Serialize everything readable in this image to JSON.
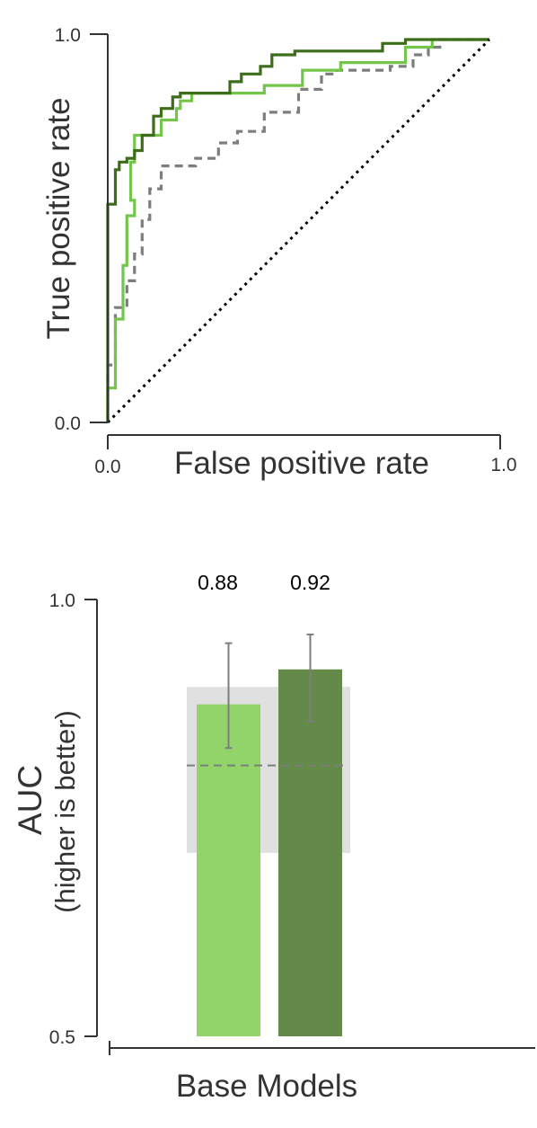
{
  "chart_data": [
    {
      "type": "line",
      "xlabel": "False positive rate",
      "ylabel": "True positive rate",
      "xlim": [
        0,
        1
      ],
      "ylim": [
        0,
        1
      ],
      "x_ticks": [
        "0.0",
        "1.0"
      ],
      "y_ticks": [
        "0.0",
        "1.0"
      ],
      "grid": false,
      "series": [
        {
          "color": "#7d7d7d",
          "style": "dashed",
          "points": [
            [
              0,
              0
            ],
            [
              0,
              0.15
            ],
            [
              0.02,
              0.15
            ],
            [
              0.02,
              0.3
            ],
            [
              0.05,
              0.3
            ],
            [
              0.05,
              0.37
            ],
            [
              0.07,
              0.37
            ],
            [
              0.07,
              0.44
            ],
            [
              0.09,
              0.44
            ],
            [
              0.09,
              0.53
            ],
            [
              0.11,
              0.53
            ],
            [
              0.11,
              0.61
            ],
            [
              0.14,
              0.61
            ],
            [
              0.14,
              0.67
            ],
            [
              0.23,
              0.67
            ],
            [
              0.23,
              0.69
            ],
            [
              0.29,
              0.69
            ],
            [
              0.29,
              0.73
            ],
            [
              0.34,
              0.73
            ],
            [
              0.34,
              0.76
            ],
            [
              0.41,
              0.76
            ],
            [
              0.41,
              0.81
            ],
            [
              0.5,
              0.81
            ],
            [
              0.5,
              0.87
            ],
            [
              0.56,
              0.87
            ],
            [
              0.56,
              0.91
            ],
            [
              0.6,
              0.91
            ],
            [
              0.6,
              0.92
            ],
            [
              0.74,
              0.92
            ],
            [
              0.74,
              0.93
            ],
            [
              0.8,
              0.93
            ],
            [
              0.8,
              0.96
            ],
            [
              0.84,
              0.96
            ],
            [
              0.84,
              0.98
            ],
            [
              0.87,
              0.98
            ],
            [
              0.87,
              1.0
            ],
            [
              1.0,
              1.0
            ]
          ]
        },
        {
          "color": "#74c64a",
          "style": "solid",
          "points": [
            [
              0,
              0
            ],
            [
              0,
              0.09
            ],
            [
              0.02,
              0.09
            ],
            [
              0.02,
              0.27
            ],
            [
              0.04,
              0.27
            ],
            [
              0.04,
              0.41
            ],
            [
              0.05,
              0.41
            ],
            [
              0.05,
              0.54
            ],
            [
              0.07,
              0.54
            ],
            [
              0.07,
              0.58
            ],
            [
              0.06,
              0.58
            ],
            [
              0.06,
              0.68
            ],
            [
              0.07,
              0.68
            ],
            [
              0.07,
              0.75
            ],
            [
              0.14,
              0.75
            ],
            [
              0.14,
              0.79
            ],
            [
              0.18,
              0.79
            ],
            [
              0.18,
              0.82
            ],
            [
              0.19,
              0.82
            ],
            [
              0.19,
              0.84
            ],
            [
              0.22,
              0.84
            ],
            [
              0.22,
              0.86
            ],
            [
              0.41,
              0.86
            ],
            [
              0.41,
              0.88
            ],
            [
              0.51,
              0.88
            ],
            [
              0.51,
              0.92
            ],
            [
              0.61,
              0.92
            ],
            [
              0.61,
              0.94
            ],
            [
              0.78,
              0.94
            ],
            [
              0.78,
              0.98
            ],
            [
              0.85,
              0.98
            ],
            [
              0.85,
              1.0
            ],
            [
              1.0,
              1.0
            ]
          ]
        },
        {
          "color": "#3c6e1a",
          "style": "solid",
          "points": [
            [
              0,
              0
            ],
            [
              0,
              0.57
            ],
            [
              0.02,
              0.57
            ],
            [
              0.02,
              0.66
            ],
            [
              0.03,
              0.66
            ],
            [
              0.03,
              0.68
            ],
            [
              0.05,
              0.68
            ],
            [
              0.05,
              0.69
            ],
            [
              0.07,
              0.69
            ],
            [
              0.07,
              0.71
            ],
            [
              0.09,
              0.71
            ],
            [
              0.09,
              0.75
            ],
            [
              0.12,
              0.75
            ],
            [
              0.12,
              0.8
            ],
            [
              0.14,
              0.8
            ],
            [
              0.14,
              0.82
            ],
            [
              0.17,
              0.82
            ],
            [
              0.17,
              0.85
            ],
            [
              0.19,
              0.85
            ],
            [
              0.19,
              0.86
            ],
            [
              0.32,
              0.86
            ],
            [
              0.32,
              0.89
            ],
            [
              0.35,
              0.89
            ],
            [
              0.35,
              0.91
            ],
            [
              0.4,
              0.91
            ],
            [
              0.4,
              0.93
            ],
            [
              0.43,
              0.93
            ],
            [
              0.43,
              0.96
            ],
            [
              0.49,
              0.96
            ],
            [
              0.49,
              0.97
            ],
            [
              0.72,
              0.97
            ],
            [
              0.72,
              0.99
            ],
            [
              0.78,
              0.99
            ],
            [
              0.78,
              1.0
            ],
            [
              1.0,
              1.0
            ]
          ]
        },
        {
          "color": "#000000",
          "style": "dotted",
          "points": [
            [
              0,
              0
            ],
            [
              1,
              1
            ]
          ]
        }
      ]
    },
    {
      "type": "bar",
      "xlabel": "Base Models",
      "ylabel": "AUC",
      "ylabel_line2": "(higher is better)",
      "ylim": [
        0.5,
        1.0
      ],
      "y_ticks": [
        "0.5",
        "1.0"
      ],
      "grid": false,
      "bars": [
        {
          "value": 0.88,
          "label": "0.88",
          "error": [
            0.83,
            0.95
          ],
          "color": "#92d46a"
        },
        {
          "value": 0.92,
          "label": "0.92",
          "error": [
            0.86,
            0.96
          ],
          "color": "#638a48"
        }
      ],
      "baseline": {
        "value": 0.81,
        "band": [
          0.71,
          0.9
        ],
        "color": "#7d7d7d",
        "band_color": "#e0e0e0",
        "style": "dashed"
      }
    }
  ]
}
